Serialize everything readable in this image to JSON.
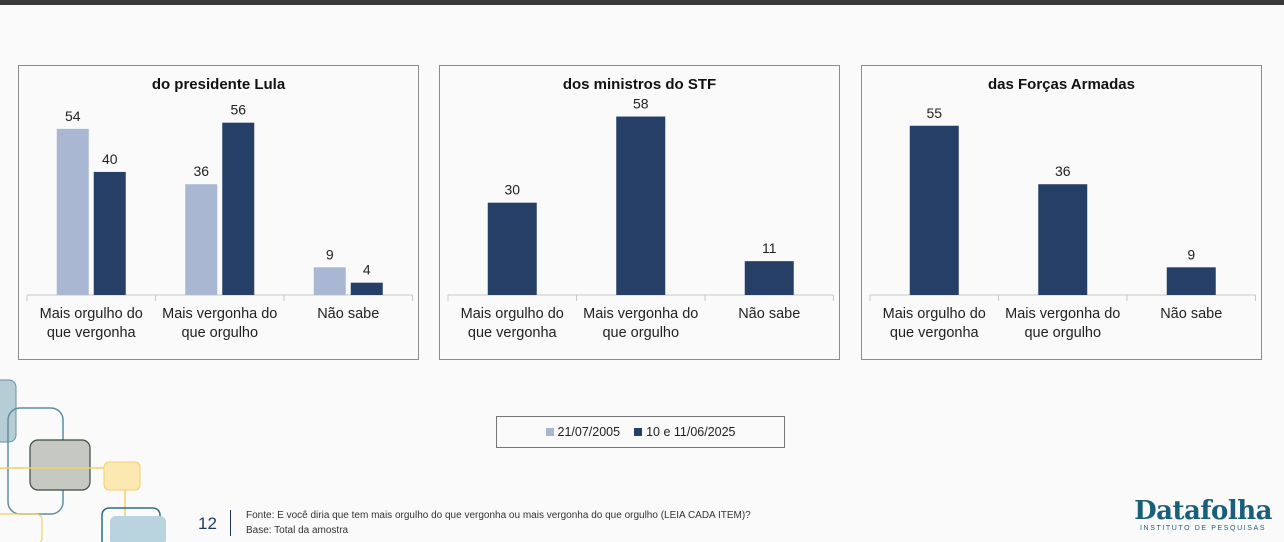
{
  "colors": {
    "old": "#a9b7d3",
    "new": "#253f66"
  },
  "chart_data": [
    {
      "type": "bar",
      "title": "do presidente Lula",
      "categories": [
        [
          "Mais orgulho do",
          "que vergonha"
        ],
        [
          "Mais vergonha do",
          "que orgulho"
        ],
        [
          "Não sabe"
        ]
      ],
      "series": [
        {
          "name": "21/07/2005",
          "values": [
            54,
            36,
            9
          ]
        },
        {
          "name": "10 e 11/06/2025",
          "values": [
            40,
            56,
            4
          ]
        }
      ],
      "ylim": [
        0,
        65
      ]
    },
    {
      "type": "bar",
      "title": "dos ministros do STF",
      "categories": [
        [
          "Mais orgulho do",
          "que vergonha"
        ],
        [
          "Mais vergonha do",
          "que orgulho"
        ],
        [
          "Não sabe"
        ]
      ],
      "series": [
        {
          "name": "10 e 11/06/2025",
          "values": [
            30,
            58,
            11
          ]
        }
      ],
      "ylim": [
        0,
        65
      ]
    },
    {
      "type": "bar",
      "title": "das Forças Armadas",
      "categories": [
        [
          "Mais orgulho do",
          "que vergonha"
        ],
        [
          "Mais vergonha do",
          "que orgulho"
        ],
        [
          "Não sabe"
        ]
      ],
      "series": [
        {
          "name": "10 e 11/06/2025",
          "values": [
            55,
            36,
            9
          ]
        }
      ],
      "ylim": [
        0,
        65
      ]
    }
  ],
  "legend": [
    {
      "label": "21/07/2005",
      "color": "#a9b7d3"
    },
    {
      "label": "10 e 11/06/2025",
      "color": "#253f66"
    }
  ],
  "footer": {
    "page_number": "12",
    "source": "Fonte: E você diria que tem mais orgulho do que vergonha ou mais vergonha do que orgulho (LEIA CADA ITEM)?",
    "base": "Base: Total da amostra"
  },
  "logo": {
    "name": "Datafolha",
    "subtitle": "INSTITUTO DE PESQUISAS"
  }
}
